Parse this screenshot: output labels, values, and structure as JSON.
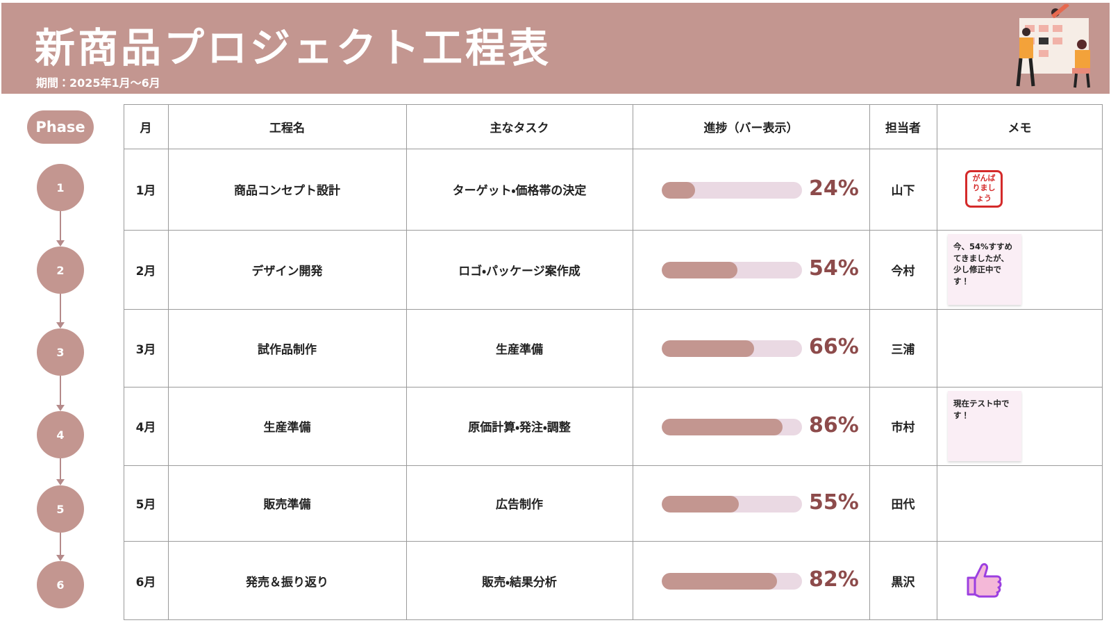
{
  "header": {
    "title": "新商品プロジェクト工程表",
    "period": "期間：2025年1月〜6月"
  },
  "timeline": {
    "label": "Phase",
    "steps": [
      "1",
      "2",
      "3",
      "4",
      "5",
      "6"
    ]
  },
  "table": {
    "columns": [
      "月",
      "工程名",
      "主なタスク",
      "進捗（バー表示）",
      "担当者",
      "メモ"
    ],
    "rows": [
      {
        "month": "1月",
        "process": "商品コンセプト設計",
        "task": "ターゲット・価格帯の決定",
        "progress": {
          "value": 24,
          "label": "24%"
        },
        "owner": "山下",
        "memo": {
          "type": "stamp",
          "text": "がんばりましょう"
        }
      },
      {
        "month": "2月",
        "process": "デザイン開発",
        "task": "ロゴ・パッケージ案作成",
        "progress": {
          "value": 54,
          "label": "54%"
        },
        "owner": "今村",
        "memo": {
          "type": "note",
          "text": "今、54%すすめてきましたが、少し修正中です！"
        }
      },
      {
        "month": "3月",
        "process": "試作品制作",
        "task": "生産準備",
        "progress": {
          "value": 66,
          "label": "66%"
        },
        "owner": "三浦"
      },
      {
        "month": "4月",
        "process": "生産準備",
        "task": "原価計算・発注・調整",
        "progress": {
          "value": 86,
          "label": "86%"
        },
        "owner": "市村",
        "memo": {
          "type": "note",
          "text": "現在テスト中です！"
        }
      },
      {
        "month": "5月",
        "process": "販売準備",
        "task": "広告制作",
        "progress": {
          "value": 55,
          "label": "55%"
        },
        "owner": "田代"
      },
      {
        "month": "6月",
        "process": "発売＆振り返り",
        "task": "販売・結果分析",
        "progress": {
          "value": 82,
          "label": "82%"
        },
        "owner": "黒沢",
        "memo": {
          "type": "thumbs-up"
        }
      }
    ]
  }
}
